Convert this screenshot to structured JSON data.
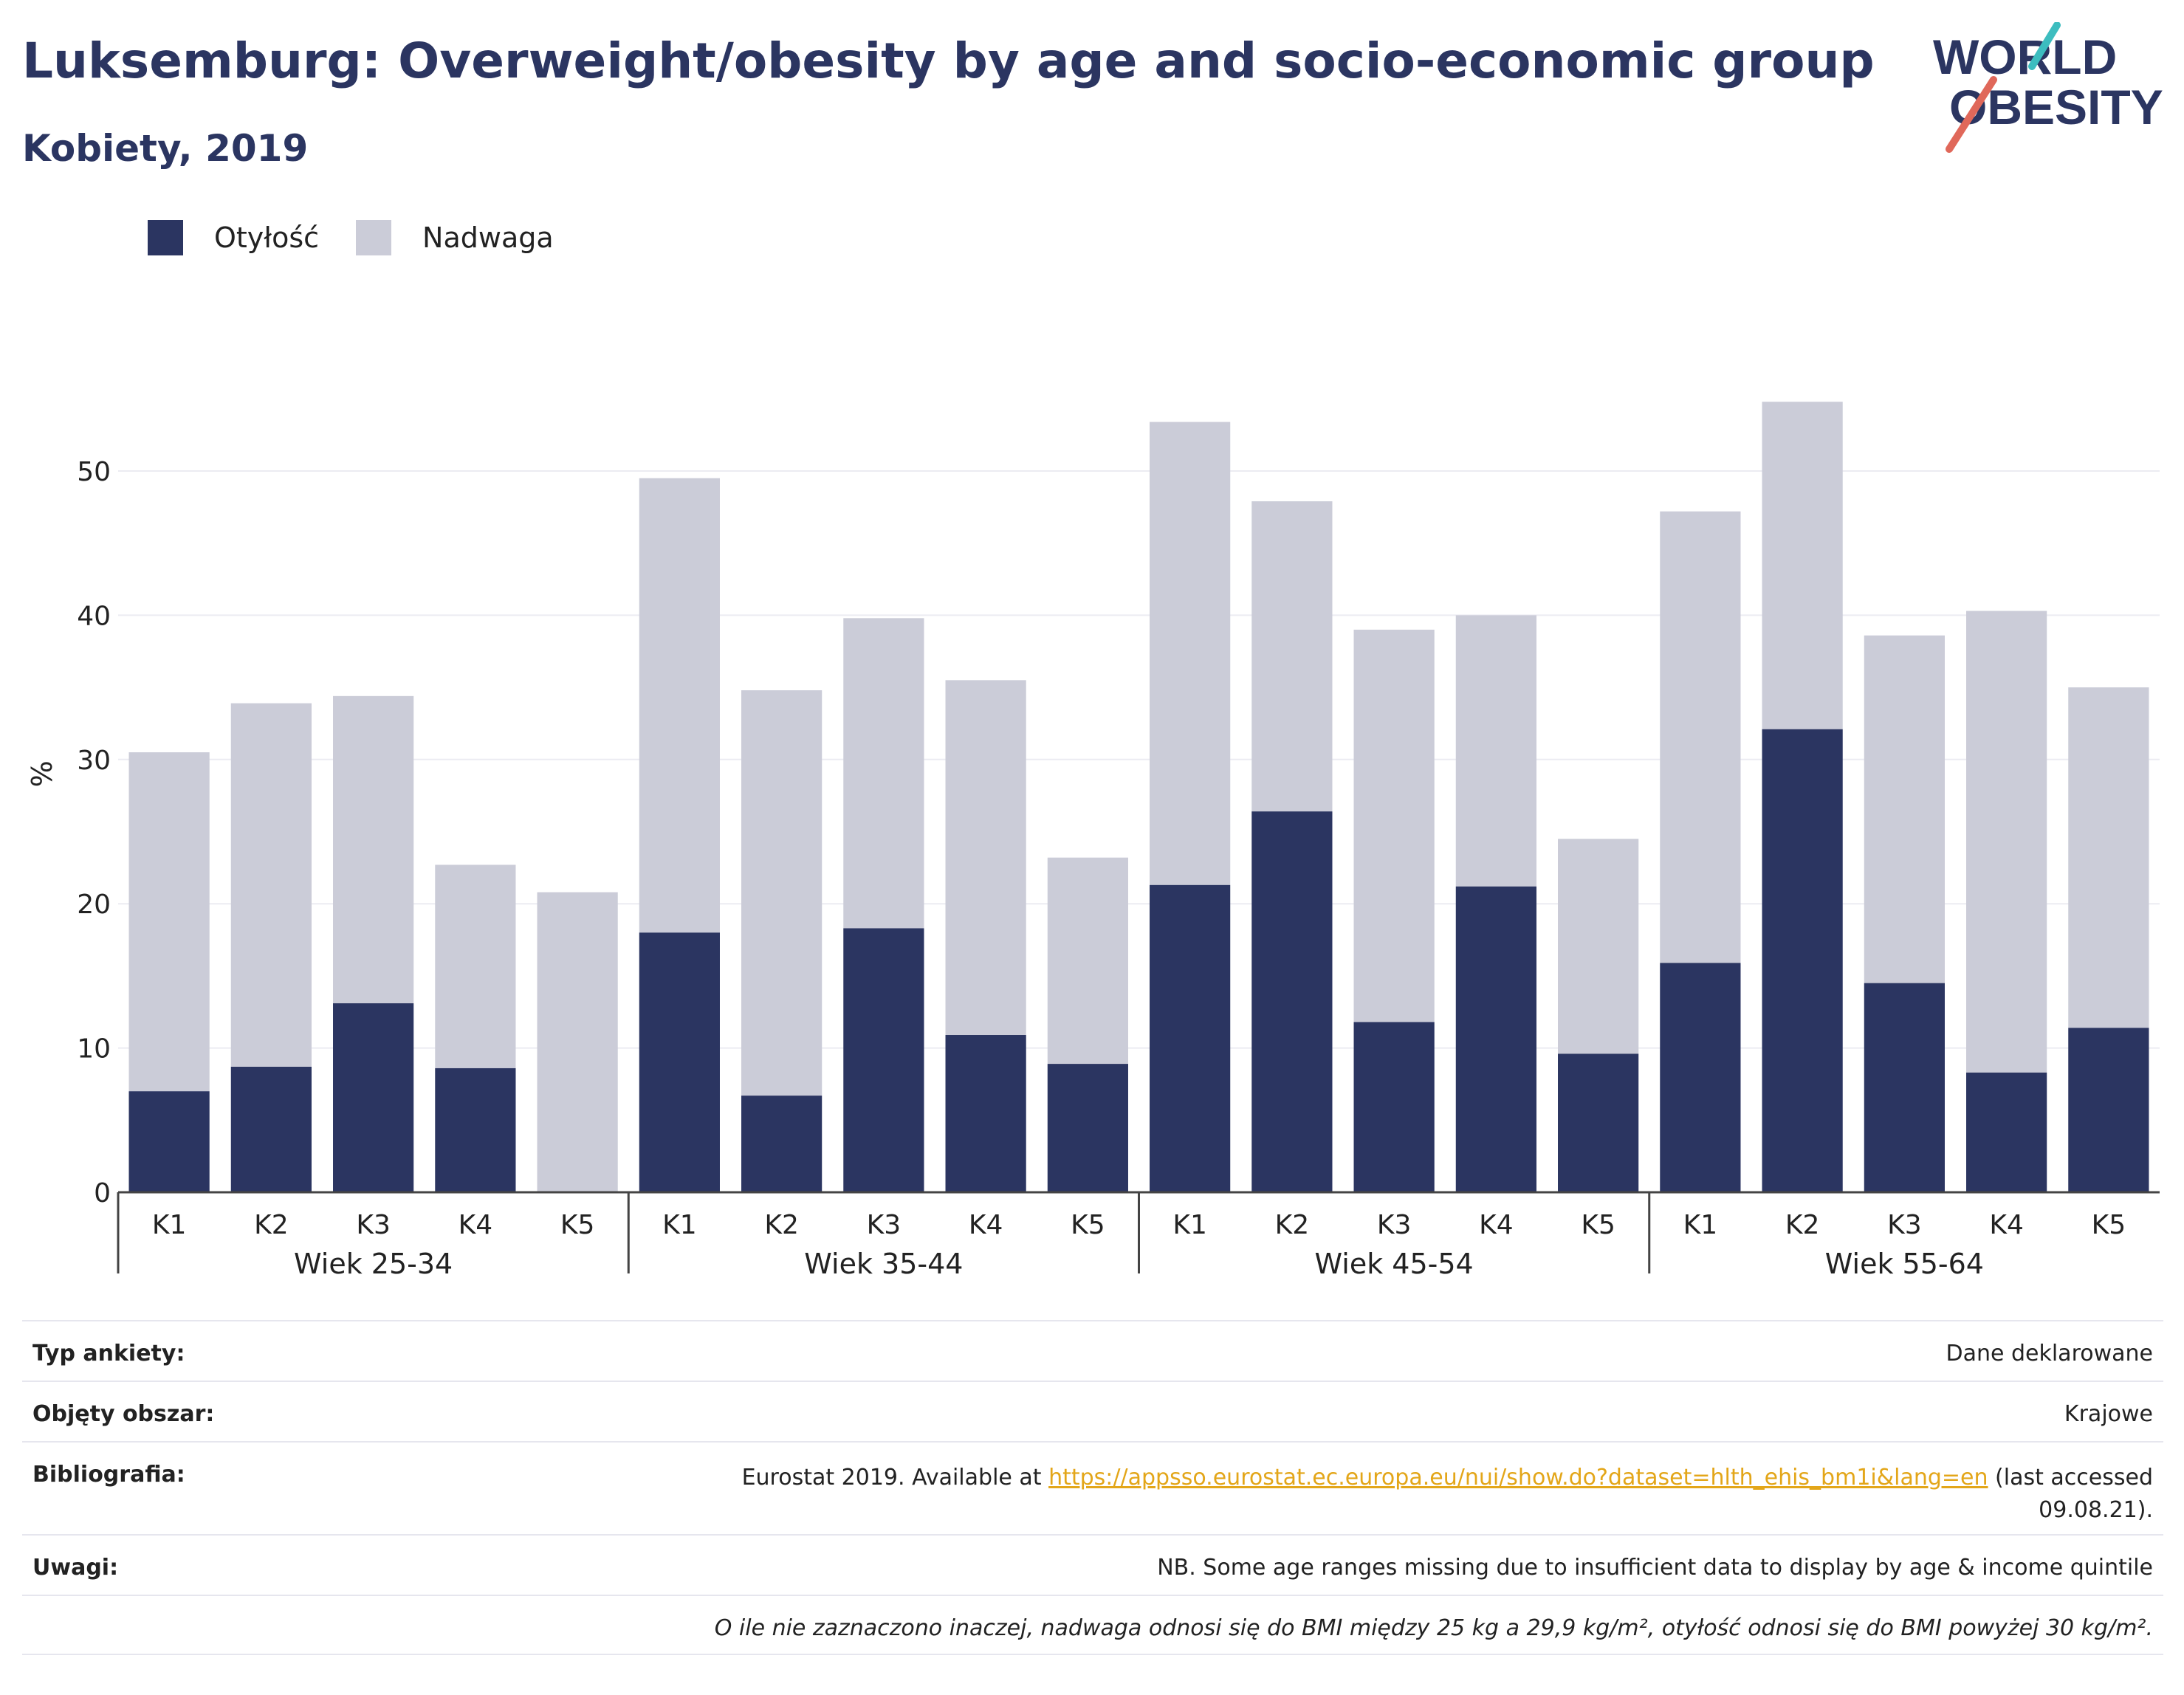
{
  "header": {
    "title": "Luksemburg: Overweight/obesity by age and socio-economic group",
    "subtitle": "Kobiety, 2019"
  },
  "logo": {
    "line1": "WORLD",
    "line2": "OBESITY",
    "accent_teal": "#3dbdbf",
    "accent_coral": "#e0685a"
  },
  "legend": [
    {
      "label": "Otyłość",
      "color": "#2b3561"
    },
    {
      "label": "Nadwaga",
      "color": "#cbccd8"
    }
  ],
  "chart_data": {
    "type": "bar",
    "stacked": true,
    "ylabel": "%",
    "ylim": [
      0,
      58
    ],
    "yticks": [
      0,
      10,
      20,
      30,
      40,
      50
    ],
    "grid": true,
    "groups": [
      "Wiek 25-34",
      "Wiek 35-44",
      "Wiek 45-54",
      "Wiek 55-64"
    ],
    "categories": [
      "K1",
      "K2",
      "K3",
      "K4",
      "K5"
    ],
    "series": [
      {
        "name": "Otyłość",
        "color": "#2b3561",
        "values": [
          [
            7.0,
            8.7,
            13.1,
            8.6,
            0.0
          ],
          [
            18.0,
            6.7,
            18.3,
            10.9,
            8.9
          ],
          [
            21.3,
            26.4,
            11.8,
            21.2,
            9.6
          ],
          [
            15.9,
            32.1,
            14.5,
            8.3,
            11.4
          ]
        ]
      },
      {
        "name": "Nadwaga",
        "color": "#cbccd8",
        "values": [
          [
            23.5,
            25.2,
            21.3,
            14.1,
            20.8
          ],
          [
            31.5,
            28.1,
            21.5,
            24.6,
            14.3
          ],
          [
            32.1,
            21.5,
            27.2,
            18.8,
            14.9
          ],
          [
            31.3,
            22.7,
            24.1,
            32.0,
            23.6
          ]
        ]
      }
    ]
  },
  "info": {
    "survey_type_label": "Typ ankiety:",
    "survey_type_value": "Dane deklarowane",
    "coverage_label": "Objęty obszar:",
    "coverage_value": "Krajowe",
    "bibliography_label": "Bibliografia:",
    "bibliography_prefix": "Eurostat 2019. Available at ",
    "bibliography_link": "https://appsso.eurostat.ec.europa.eu/nui/show.do?dataset=hlth_ehis_bm1i&lang=en",
    "bibliography_suffix": " (last accessed",
    "bibliography_suffix2": "09.08.21).",
    "notes_label": "Uwagi:",
    "notes_value": "NB. Some age ranges missing due to insufficient data to display by age & income quintile",
    "footnote": "O ile nie zaznaczono inaczej, nadwaga odnosi się do BMI między 25 kg a 29,9 kg/m², otyłość odnosi się do BMI powyżej 30 kg/m²."
  }
}
